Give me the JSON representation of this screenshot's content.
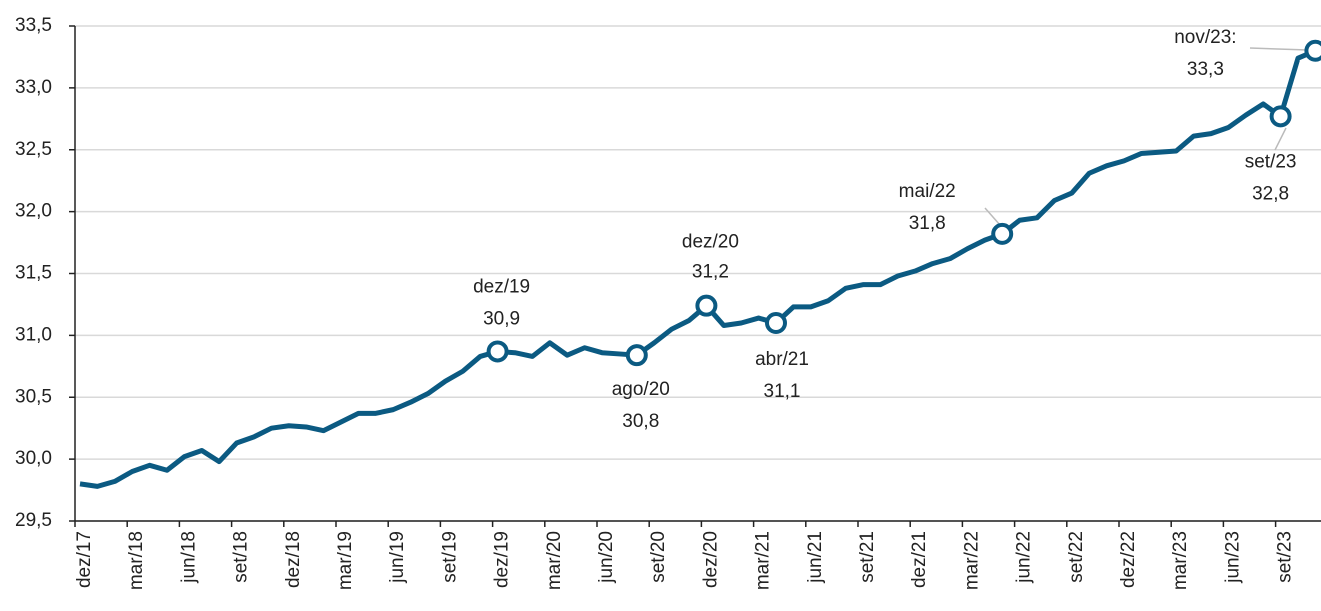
{
  "chart_data": {
    "type": "line",
    "categories": [
      "dez/17",
      null,
      null,
      "mar/18",
      null,
      null,
      "jun/18",
      null,
      null,
      "set/18",
      null,
      null,
      "dez/18",
      null,
      null,
      "mar/19",
      null,
      null,
      "jun/19",
      null,
      null,
      "set/19",
      null,
      null,
      "dez/19",
      null,
      null,
      "mar/20",
      null,
      null,
      "jun/20",
      null,
      null,
      "set/20",
      null,
      null,
      "dez/20",
      null,
      null,
      "mar/21",
      null,
      null,
      "jun/21",
      null,
      null,
      "set/21",
      null,
      null,
      "dez/21",
      null,
      null,
      "mar/22",
      null,
      null,
      "jun/22",
      null,
      null,
      "set/22",
      null,
      null,
      "dez/22",
      null,
      null,
      "mar/23",
      null,
      null,
      "jun/23",
      null,
      null,
      "set/23",
      null,
      null
    ],
    "series": [
      {
        "color": "#0b5a82",
        "values": [
          29.8,
          29.78,
          29.82,
          29.9,
          29.95,
          29.91,
          30.02,
          30.07,
          29.98,
          30.13,
          30.18,
          30.25,
          30.27,
          30.26,
          30.23,
          30.3,
          30.37,
          30.37,
          30.4,
          30.46,
          30.53,
          30.63,
          30.71,
          30.83,
          30.87,
          30.86,
          30.83,
          30.94,
          30.84,
          30.9,
          30.86,
          30.85,
          30.84,
          30.94,
          31.05,
          31.12,
          31.24,
          31.08,
          31.1,
          31.14,
          31.1,
          31.23,
          31.23,
          31.28,
          31.38,
          31.41,
          31.41,
          31.48,
          31.52,
          31.58,
          31.62,
          31.7,
          31.77,
          31.82,
          31.93,
          31.95,
          32.09,
          32.15,
          32.31,
          32.37,
          32.41,
          32.47,
          32.48,
          32.49,
          32.61,
          32.63,
          32.68,
          32.78,
          32.87,
          32.77,
          33.24,
          33.3
        ],
        "point_names": [
          null,
          null,
          null,
          null,
          null,
          null,
          null,
          null,
          null,
          null,
          null,
          null,
          null,
          null,
          null,
          null,
          null,
          null,
          null,
          null,
          null,
          null,
          null,
          null,
          "dez/19",
          null,
          null,
          null,
          null,
          null,
          null,
          null,
          "ago/20",
          null,
          null,
          null,
          "dez/20",
          null,
          null,
          null,
          "abr/21",
          null,
          null,
          null,
          null,
          null,
          null,
          null,
          null,
          null,
          null,
          null,
          null,
          "mai/22",
          null,
          null,
          null,
          null,
          null,
          null,
          null,
          null,
          null,
          null,
          null,
          null,
          null,
          null,
          null,
          "set/23",
          null,
          "nov/23:"
        ],
        "value_labels": [
          null,
          null,
          null,
          null,
          null,
          null,
          null,
          null,
          null,
          null,
          null,
          null,
          null,
          null,
          null,
          null,
          null,
          null,
          null,
          null,
          null,
          null,
          null,
          null,
          "30,9",
          null,
          null,
          null,
          null,
          null,
          null,
          null,
          "30,8",
          null,
          null,
          null,
          "31,2",
          null,
          null,
          null,
          "31,1",
          null,
          null,
          null,
          null,
          null,
          null,
          null,
          null,
          null,
          null,
          null,
          null,
          "31,8",
          null,
          null,
          null,
          null,
          null,
          null,
          null,
          null,
          null,
          null,
          null,
          null,
          null,
          null,
          null,
          "32,8",
          null,
          "33,3"
        ]
      }
    ],
    "ylim": [
      29.5,
      33.5
    ],
    "yticks": [
      {
        "value": 29.5,
        "label": "29,5"
      },
      {
        "value": 30,
        "label": "30,0"
      },
      {
        "value": 30.5,
        "label": "30,5"
      },
      {
        "value": 31,
        "label": "31,0"
      },
      {
        "value": 31.5,
        "label": "31,5"
      },
      {
        "value": 32,
        "label": "32,0"
      },
      {
        "value": 32.5,
        "label": "32,5"
      },
      {
        "value": 33,
        "label": "33,0"
      },
      {
        "value": 33.5,
        "label": "33,5"
      }
    ],
    "grid": true
  }
}
